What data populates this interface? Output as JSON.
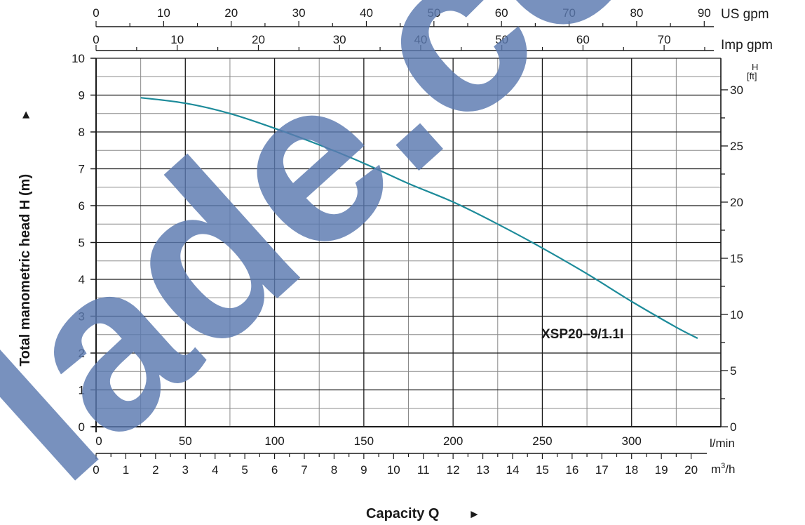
{
  "chart_data": {
    "type": "line",
    "x_units": {
      "lmin": {
        "label": "l/min",
        "range": [
          0,
          350
        ],
        "ticks": [
          0,
          50,
          100,
          150,
          200,
          250,
          300
        ]
      },
      "m3h": {
        "label_main": "m",
        "label_sup": "3",
        "label_tail": "/h",
        "range": [
          0,
          21
        ],
        "ticks": [
          0,
          1,
          2,
          3,
          4,
          5,
          6,
          7,
          8,
          9,
          10,
          11,
          12,
          13,
          14,
          15,
          16,
          17,
          18,
          19,
          20
        ]
      },
      "us_gpm": {
        "label": "US gpm",
        "range": [
          0,
          92.46
        ],
        "ticks": [
          0,
          10,
          20,
          30,
          40,
          50,
          60,
          70,
          80,
          90
        ]
      },
      "imp_gpm": {
        "label": "Imp gpm",
        "range": [
          0,
          76.99
        ],
        "ticks": [
          0,
          10,
          20,
          30,
          40,
          50,
          60,
          70
        ]
      }
    },
    "y_units": {
      "m": {
        "range": [
          0,
          10
        ],
        "ticks": [
          0,
          1,
          2,
          3,
          4,
          5,
          6,
          7,
          8,
          9,
          10
        ]
      },
      "ft": {
        "label_top": "H",
        "label_bottom": "[ft]",
        "range": [
          0,
          32.81
        ],
        "ticks": [
          0,
          5,
          10,
          15,
          20,
          25,
          30
        ]
      }
    },
    "xlabel": "Capacity Q",
    "xlabel_arrow": "►",
    "ylabel": "Total manometric head H (m)",
    "ylabel_arrow": "►",
    "grid": true,
    "series": [
      {
        "name": "XSP20–9/1.1I",
        "color": "#1d8b9a",
        "x_lmin": [
          25,
          50,
          75,
          100,
          125,
          150,
          175,
          200,
          225,
          250,
          275,
          300,
          325,
          337
        ],
        "y_m": [
          8.93,
          8.78,
          8.5,
          8.1,
          7.65,
          7.15,
          6.6,
          6.1,
          5.5,
          4.85,
          4.15,
          3.4,
          2.7,
          2.4
        ]
      }
    ]
  },
  "watermark": {
    "text": "lade.com",
    "color": "#5b7ab0"
  }
}
